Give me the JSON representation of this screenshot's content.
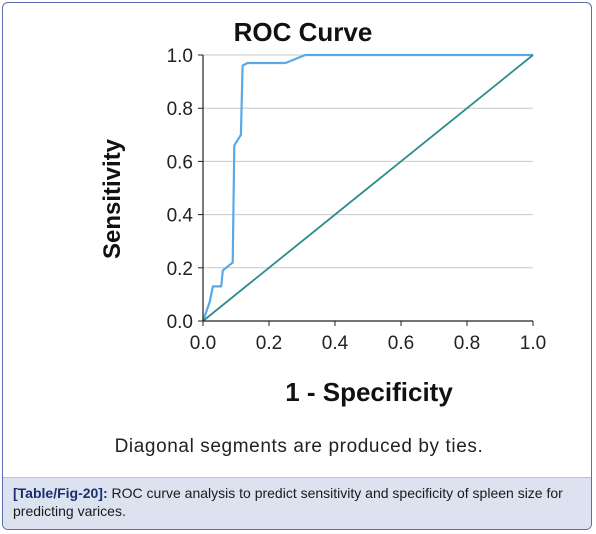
{
  "chart_data": {
    "type": "line",
    "title": "ROC Curve",
    "xlabel": "1 - Specificity",
    "ylabel": "Sensitivity",
    "xlim": [
      0,
      1
    ],
    "ylim": [
      0,
      1
    ],
    "x_ticks": [
      "0.0",
      "0.2",
      "0.4",
      "0.6",
      "0.8",
      "1.0"
    ],
    "y_ticks": [
      "0.0",
      "0.2",
      "0.4",
      "0.6",
      "0.8",
      "1.0"
    ],
    "grid": "horizontal",
    "footnote": "Diagonal segments are produced by ties.",
    "series": [
      {
        "color": "#5aa9e6",
        "x": [
          0.0,
          0.02,
          0.03,
          0.055,
          0.06,
          0.09,
          0.095,
          0.115,
          0.12,
          0.135,
          0.25,
          0.31,
          1.0
        ],
        "y": [
          0.0,
          0.07,
          0.13,
          0.13,
          0.19,
          0.22,
          0.66,
          0.7,
          0.96,
          0.97,
          0.97,
          1.0,
          1.0
        ]
      },
      {
        "color": "#2e8b8b",
        "x": [
          0.0,
          1.0
        ],
        "y": [
          0.0,
          1.0
        ]
      }
    ]
  },
  "caption": {
    "tag": "[Table/Fig-20]:",
    "text": " ROC curve analysis to predict sensitivity and specificity of spleen size for predicting varices."
  }
}
